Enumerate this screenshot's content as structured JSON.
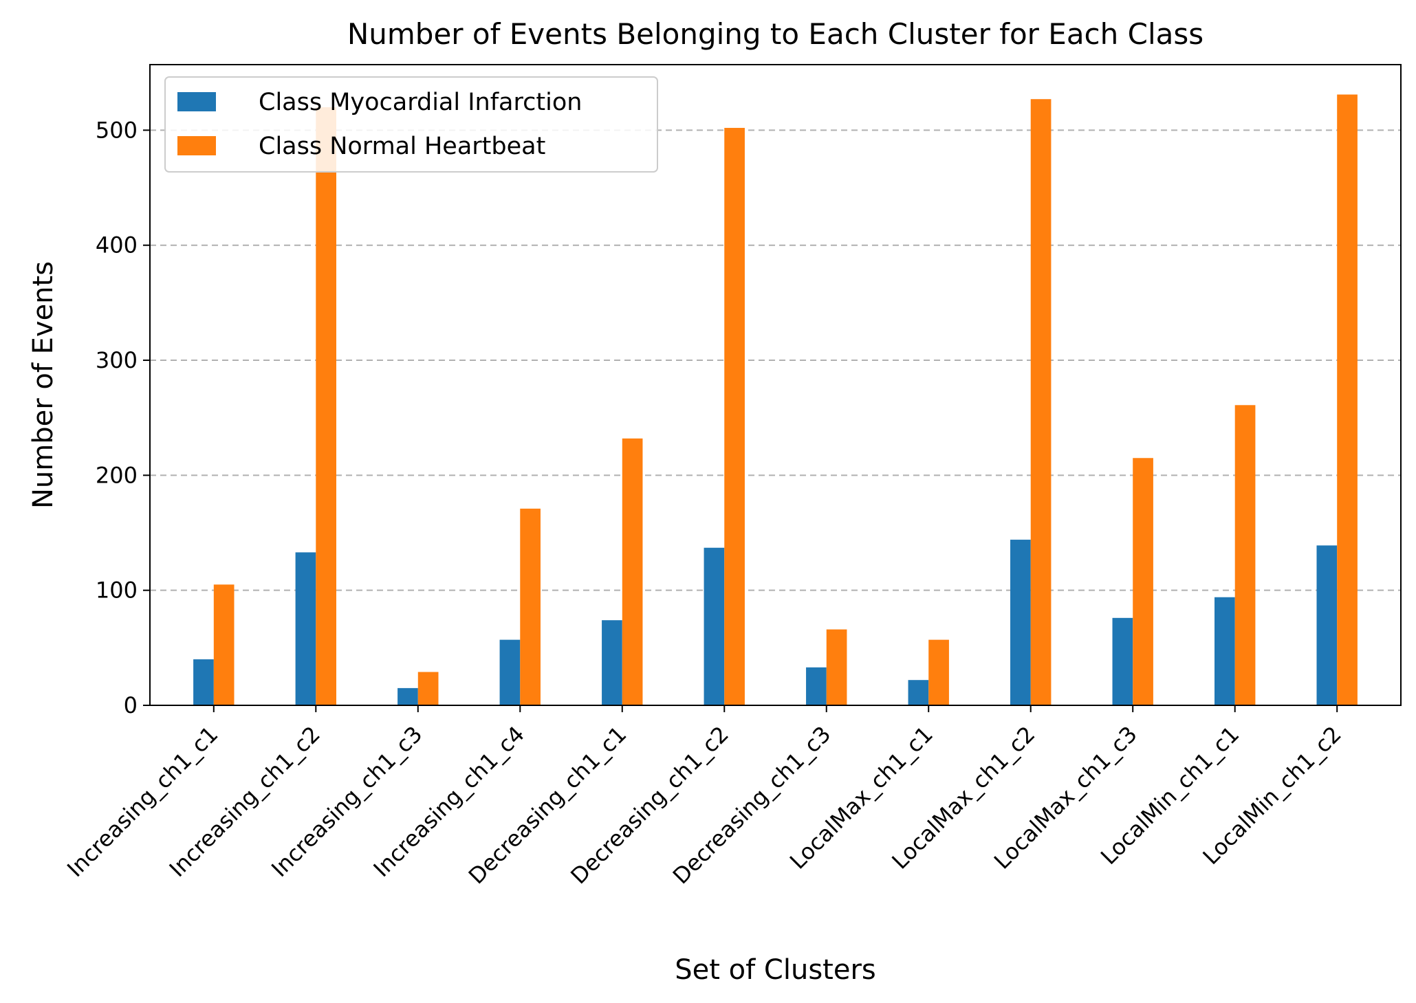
{
  "chart_data": {
    "type": "bar",
    "title": "Number of Events Belonging to Each Cluster for Each Class",
    "xlabel": "Set of Clusters",
    "ylabel": "Number of Events",
    "categories": [
      "Increasing_ch1_c1",
      "Increasing_ch1_c2",
      "Increasing_ch1_c3",
      "Increasing_ch1_c4",
      "Decreasing_ch1_c1",
      "Decreasing_ch1_c2",
      "Decreasing_ch1_c3",
      "LocalMax_ch1_c1",
      "LocalMax_ch1_c2",
      "LocalMax_ch1_c3",
      "LocalMin_ch1_c1",
      "LocalMin_ch1_c2"
    ],
    "series": [
      {
        "name": "Class Myocardial Infarction",
        "color": "#1f77b4",
        "values": [
          40,
          133,
          15,
          57,
          74,
          137,
          33,
          22,
          144,
          76,
          94,
          139
        ]
      },
      {
        "name": "Class Normal Heartbeat",
        "color": "#ff7f0e",
        "values": [
          105,
          520,
          29,
          171,
          232,
          502,
          66,
          57,
          527,
          215,
          261,
          531
        ]
      }
    ],
    "ylim": [
      0,
      557
    ],
    "yticks": [
      0,
      100,
      200,
      300,
      400,
      500
    ],
    "grid": "y-dashed",
    "legend": "top-left"
  }
}
